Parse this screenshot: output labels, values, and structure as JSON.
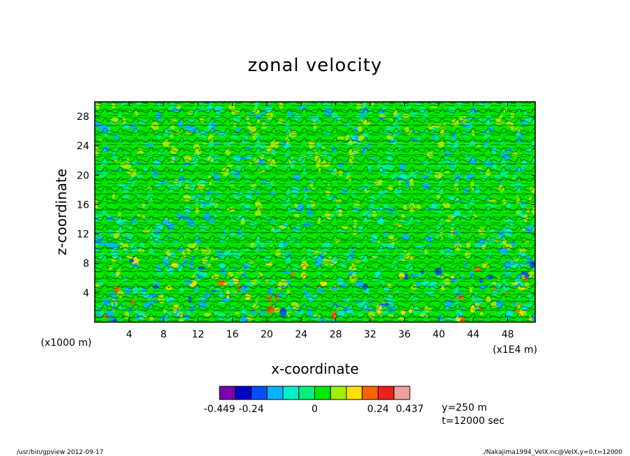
{
  "chart_data": {
    "type": "heatmap",
    "title": "zonal velocity",
    "xlabel": "x-coordinate",
    "ylabel": "z-coordinate",
    "x_unit_label": "(x1E4 m)",
    "y_unit_label": "(x1000 m)",
    "xlim": [
      0,
      51.2
    ],
    "ylim": [
      0,
      30
    ],
    "x_ticks": [
      "4",
      "8",
      "12",
      "16",
      "20",
      "24",
      "28",
      "32",
      "36",
      "40",
      "44",
      "48"
    ],
    "y_ticks": [
      "4",
      "8",
      "12",
      "16",
      "20",
      "24",
      "28"
    ],
    "colorbar": {
      "labels": [
        "-0.449",
        "-0.24",
        "0",
        "0.24",
        "0.437"
      ],
      "colors": [
        "#7a00b0",
        "#0000c8",
        "#0050ff",
        "#00b4ff",
        "#00f0c8",
        "#00f080",
        "#00e800",
        "#a0f000",
        "#ffe000",
        "#ff6400",
        "#f01e1e",
        "#f0a0a0"
      ]
    },
    "annotations": {
      "y_slice": "y=250 m",
      "time": "t=12000 sec"
    }
  },
  "footer": {
    "left": "/usr/bin/gpview   2012-09-17",
    "right": "./Nakajima1994_VelX.nc@VelX,y=0,t=12000"
  }
}
